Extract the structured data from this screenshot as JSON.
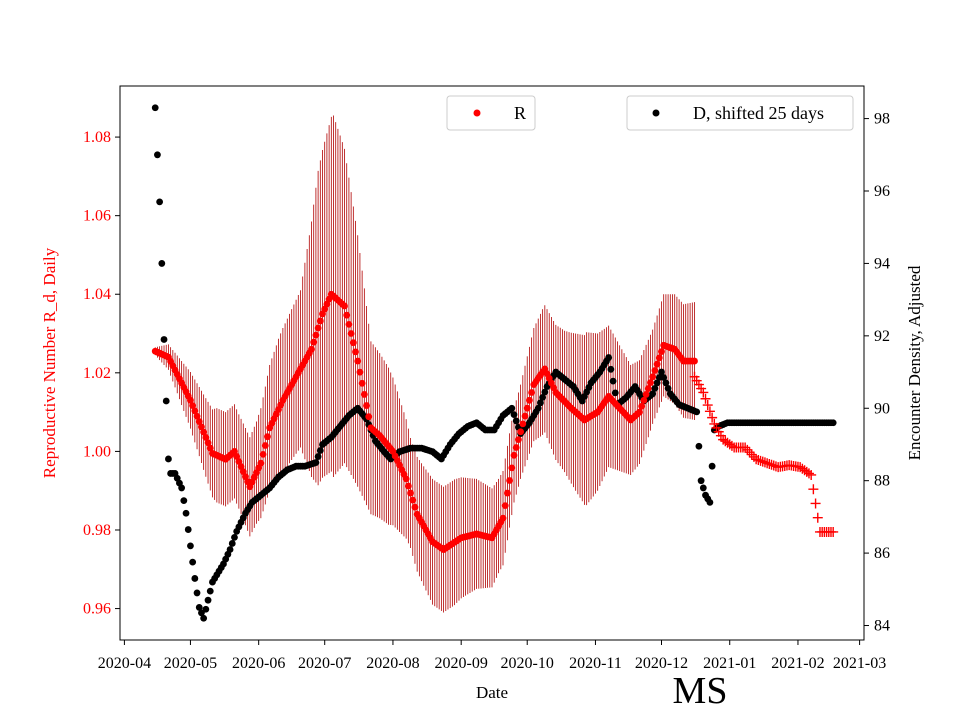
{
  "chart_data": {
    "type": "scatter",
    "xlabel": "Date",
    "ylabel_left": "Reproductive Number R_d, Daily",
    "ylabel_right": "Encounter Density, Adjusted",
    "region_label": "MS",
    "x_ticks": [
      "2020-04",
      "2020-05",
      "2020-06",
      "2020-07",
      "2020-08",
      "2020-09",
      "2020-10",
      "2020-11",
      "2020-12",
      "2021-01",
      "2021-02",
      "2021-03"
    ],
    "xlim_days_from_2020_04_01": [
      -2,
      336
    ],
    "ylim_left": [
      0.952,
      1.093
    ],
    "y_ticks_left": [
      "0.96",
      "0.98",
      "1.00",
      "1.02",
      "1.04",
      "1.06",
      "1.08"
    ],
    "ylim_right": [
      83.6,
      98.9
    ],
    "y_ticks_right": [
      "84",
      "86",
      "88",
      "90",
      "92",
      "94",
      "96",
      "98"
    ],
    "legend": [
      "R",
      "D, shifted 25 days"
    ],
    "colors": {
      "r_series": "#ff0000",
      "r_error": "#b00000",
      "d_series": "#000000",
      "forecast": "#ff0000",
      "left_axis_text": "#ff0000"
    },
    "series": [
      {
        "name": "R",
        "x_start_day": 14,
        "x_end_day": 259,
        "knots": [
          [
            14,
            1.0255
          ],
          [
            20,
            1.024
          ],
          [
            30,
            1.013
          ],
          [
            40,
            0.9995
          ],
          [
            46,
            0.998
          ],
          [
            50,
            1.0
          ],
          [
            57,
            0.991
          ],
          [
            62,
            0.997
          ],
          [
            66,
            1.006
          ],
          [
            72,
            1.013
          ],
          [
            80,
            1.021
          ],
          [
            85,
            1.026
          ],
          [
            90,
            1.035
          ],
          [
            94,
            1.04
          ],
          [
            100,
            1.037
          ],
          [
            106,
            1.023
          ],
          [
            112,
            1.006
          ],
          [
            116,
            1.004
          ],
          [
            122,
            1.0
          ],
          [
            128,
            0.993
          ],
          [
            133,
            0.984
          ],
          [
            140,
            0.977
          ],
          [
            145,
            0.975
          ],
          [
            153,
            0.978
          ],
          [
            160,
            0.979
          ],
          [
            167,
            0.978
          ],
          [
            172,
            0.983
          ],
          [
            177,
            0.999
          ],
          [
            186,
            1.017
          ],
          [
            191,
            1.021
          ],
          [
            196,
            1.015
          ],
          [
            203,
            1.011
          ],
          [
            209,
            1.008
          ],
          [
            215,
            1.01
          ],
          [
            220,
            1.014
          ],
          [
            225,
            1.011
          ],
          [
            230,
            1.008
          ],
          [
            234,
            1.01
          ],
          [
            240,
            1.019
          ],
          [
            245,
            1.027
          ],
          [
            250,
            1.026
          ],
          [
            254,
            1.023
          ],
          [
            259,
            1.023
          ]
        ],
        "error_halfwidth_knots": [
          [
            14,
            0.001
          ],
          [
            22,
            0.004
          ],
          [
            32,
            0.008
          ],
          [
            42,
            0.012
          ],
          [
            52,
            0.012
          ],
          [
            60,
            0.013
          ],
          [
            70,
            0.018
          ],
          [
            80,
            0.02
          ],
          [
            88,
            0.04
          ],
          [
            95,
            0.046
          ],
          [
            100,
            0.04
          ],
          [
            106,
            0.032
          ],
          [
            112,
            0.022
          ],
          [
            120,
            0.02
          ],
          [
            130,
            0.014
          ],
          [
            140,
            0.016
          ],
          [
            150,
            0.016
          ],
          [
            160,
            0.014
          ],
          [
            170,
            0.012
          ],
          [
            180,
            0.012
          ],
          [
            190,
            0.016
          ],
          [
            200,
            0.018
          ],
          [
            210,
            0.022
          ],
          [
            220,
            0.018
          ],
          [
            230,
            0.014
          ],
          [
            240,
            0.012
          ],
          [
            250,
            0.014
          ],
          [
            259,
            0.015
          ]
        ]
      },
      {
        "name": "R forecast",
        "marker": "+",
        "x_start_day": 259,
        "x_end_day": 322,
        "knots": [
          [
            259,
            1.019
          ],
          [
            263,
            1.015
          ],
          [
            268,
            1.007
          ],
          [
            272,
            1.003
          ],
          [
            277,
            1.001
          ],
          [
            282,
            1.001
          ],
          [
            287,
            0.998
          ],
          [
            292,
            0.997
          ],
          [
            297,
            0.996
          ],
          [
            302,
            0.9965
          ],
          [
            307,
            0.996
          ],
          [
            312,
            0.994
          ],
          [
            316,
            0.9795
          ],
          [
            322,
            0.9795
          ]
        ]
      },
      {
        "name": "D, shifted 25 days",
        "axis": "right",
        "x_start_day": 14,
        "x_end_day": 322,
        "knots": [
          [
            14,
            98.3
          ],
          [
            15,
            97.0
          ],
          [
            16,
            95.7
          ],
          [
            17,
            94.0
          ],
          [
            18,
            91.9
          ],
          [
            19,
            90.2
          ],
          [
            20,
            88.6
          ],
          [
            21,
            88.2
          ],
          [
            23,
            88.2
          ],
          [
            26,
            87.8
          ],
          [
            28,
            87.1
          ],
          [
            30,
            86.2
          ],
          [
            32,
            85.3
          ],
          [
            34,
            84.5
          ],
          [
            36,
            84.2
          ],
          [
            38,
            84.7
          ],
          [
            40,
            85.2
          ],
          [
            42,
            85.4
          ],
          [
            45,
            85.7
          ],
          [
            48,
            86.1
          ],
          [
            51,
            86.6
          ],
          [
            55,
            87.1
          ],
          [
            58,
            87.4
          ],
          [
            62,
            87.6
          ],
          [
            66,
            87.8
          ],
          [
            70,
            88.1
          ],
          [
            74,
            88.3
          ],
          [
            78,
            88.4
          ],
          [
            82,
            88.4
          ],
          [
            87,
            88.5
          ],
          [
            90,
            89.0
          ],
          [
            94,
            89.2
          ],
          [
            98,
            89.5
          ],
          [
            102,
            89.8
          ],
          [
            106,
            90.0
          ],
          [
            110,
            89.7
          ],
          [
            114,
            89.1
          ],
          [
            118,
            88.8
          ],
          [
            121,
            88.6
          ],
          [
            125,
            88.8
          ],
          [
            130,
            88.9
          ],
          [
            135,
            88.9
          ],
          [
            140,
            88.8
          ],
          [
            144,
            88.6
          ],
          [
            148,
            89.0
          ],
          [
            152,
            89.3
          ],
          [
            156,
            89.5
          ],
          [
            160,
            89.6
          ],
          [
            164,
            89.4
          ],
          [
            168,
            89.4
          ],
          [
            172,
            89.8
          ],
          [
            176,
            90.0
          ],
          [
            180,
            89.3
          ],
          [
            184,
            89.6
          ],
          [
            188,
            90.0
          ],
          [
            192,
            90.6
          ],
          [
            196,
            91.0
          ],
          [
            200,
            90.8
          ],
          [
            204,
            90.6
          ],
          [
            208,
            90.2
          ],
          [
            212,
            90.7
          ],
          [
            216,
            91.0
          ],
          [
            220,
            91.4
          ],
          [
            224,
            90.1
          ],
          [
            228,
            90.3
          ],
          [
            232,
            90.6
          ],
          [
            236,
            90.2
          ],
          [
            240,
            90.4
          ],
          [
            244,
            91.0
          ],
          [
            248,
            90.4
          ],
          [
            252,
            90.1
          ],
          [
            256,
            90.0
          ],
          [
            260,
            89.9
          ],
          [
            262,
            88.0
          ],
          [
            264,
            87.6
          ],
          [
            266,
            87.4
          ],
          [
            268,
            89.4
          ],
          [
            270,
            89.5
          ],
          [
            274,
            89.6
          ],
          [
            300,
            89.6
          ],
          [
            322,
            89.6
          ]
        ]
      }
    ]
  }
}
